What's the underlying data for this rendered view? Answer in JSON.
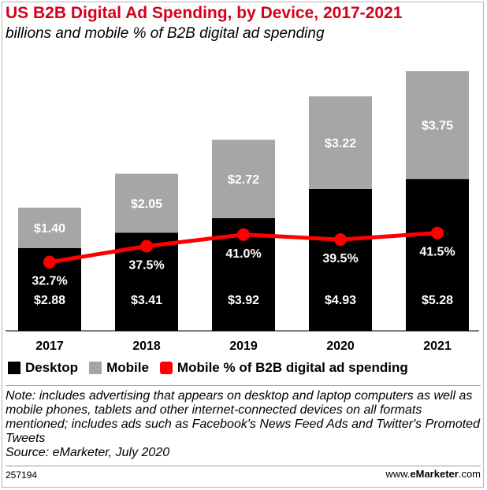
{
  "header": {
    "title": "US B2B Digital Ad Spending, by Device, 2017-2021",
    "subtitle": "billions and mobile % of B2B digital ad spending"
  },
  "chart_data": {
    "type": "bar",
    "stacked": true,
    "categories": [
      "2017",
      "2018",
      "2019",
      "2020",
      "2021"
    ],
    "series": [
      {
        "name": "Desktop",
        "values": [
          2.88,
          3.41,
          3.92,
          4.93,
          5.28
        ],
        "labels": [
          "$2.88",
          "$3.41",
          "$3.92",
          "$4.93",
          "$5.28"
        ],
        "color": "#000000"
      },
      {
        "name": "Mobile",
        "values": [
          1.4,
          2.05,
          2.72,
          3.22,
          3.75
        ],
        "labels": [
          "$1.40",
          "$2.05",
          "$2.72",
          "$3.22",
          "$3.75"
        ],
        "color": "#a6a6a6"
      }
    ],
    "line_series": {
      "name": "Mobile % of B2B digital ad spending",
      "values": [
        32.7,
        37.5,
        41.0,
        39.5,
        41.5
      ],
      "labels": [
        "32.7%",
        "37.5%",
        "41.0%",
        "39.5%",
        "41.5%"
      ],
      "color": "#ff0000"
    },
    "ylim": [
      0,
      9.5
    ],
    "grid": false,
    "legend_position": "bottom"
  },
  "legend": {
    "desktop": "Desktop",
    "mobile": "Mobile",
    "mobile_pct": "Mobile % of B2B digital ad spending"
  },
  "note": {
    "text": "Note: includes advertising that appears on desktop and laptop computers as well as mobile phones, tablets and other internet-connected devices on all formats mentioned; includes ads such as Facebook's News Feed Ads and Twitter's Promoted Tweets",
    "source": "Source: eMarketer, July 2020"
  },
  "footer": {
    "id": "257194",
    "brand_prefix": "www.",
    "brand_name": "eMarketer",
    "brand_suffix": ".com"
  }
}
